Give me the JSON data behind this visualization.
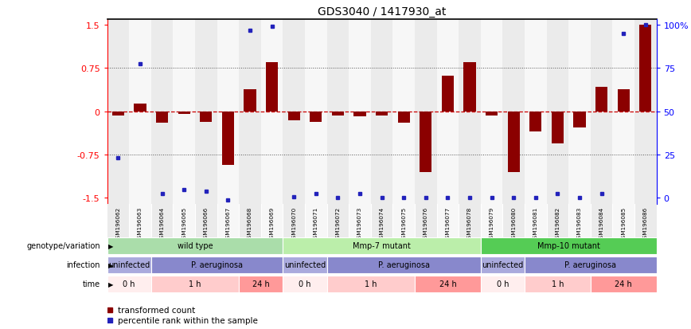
{
  "title": "GDS3040 / 1417930_at",
  "samples": [
    "GSM196062",
    "GSM196063",
    "GSM196064",
    "GSM196065",
    "GSM196066",
    "GSM196067",
    "GSM196068",
    "GSM196069",
    "GSM196070",
    "GSM196071",
    "GSM196072",
    "GSM196073",
    "GSM196074",
    "GSM196075",
    "GSM196076",
    "GSM196077",
    "GSM196078",
    "GSM196079",
    "GSM196080",
    "GSM196081",
    "GSM196082",
    "GSM196083",
    "GSM196084",
    "GSM196085",
    "GSM196086"
  ],
  "bar_values": [
    -0.07,
    0.13,
    -0.2,
    -0.05,
    -0.18,
    -0.93,
    0.39,
    0.85,
    -0.15,
    -0.18,
    -0.07,
    -0.08,
    -0.07,
    -0.2,
    -1.05,
    0.62,
    0.85,
    -0.07,
    -1.05,
    -0.35,
    -0.55,
    -0.28,
    0.42,
    0.38,
    1.5
  ],
  "dot_values": [
    -0.8,
    0.82,
    -1.42,
    -1.35,
    -1.38,
    -1.53,
    1.4,
    1.47,
    -1.48,
    -1.42,
    -1.5,
    -1.42,
    -1.5,
    -1.5,
    -1.5,
    -1.5,
    -1.5,
    -1.5,
    -1.5,
    -1.5,
    -1.42,
    -1.5,
    -1.42,
    1.35,
    1.5
  ],
  "ylim": [
    -1.6,
    1.6
  ],
  "yticks": [
    -1.5,
    -0.75,
    0.0,
    0.75,
    1.5
  ],
  "right_yticks": [
    0,
    25,
    50,
    75,
    100
  ],
  "right_ylabels": [
    "0",
    "25",
    "50",
    "75",
    "100%"
  ],
  "bar_color": "#8B0000",
  "dot_color": "#2222BB",
  "hline_color": "#cc0000",
  "dotted_color": "#555555",
  "groups": {
    "genotype": [
      {
        "label": "wild type",
        "start": 0,
        "end": 8,
        "color": "#aaddaa"
      },
      {
        "label": "Mmp-7 mutant",
        "start": 8,
        "end": 17,
        "color": "#bbeeaa"
      },
      {
        "label": "Mmp-10 mutant",
        "start": 17,
        "end": 25,
        "color": "#55cc55"
      }
    ],
    "infection": [
      {
        "label": "uninfected",
        "start": 0,
        "end": 2,
        "color": "#aaaadd"
      },
      {
        "label": "P. aeruginosa",
        "start": 2,
        "end": 8,
        "color": "#8888cc"
      },
      {
        "label": "uninfected",
        "start": 8,
        "end": 10,
        "color": "#aaaadd"
      },
      {
        "label": "P. aeruginosa",
        "start": 10,
        "end": 17,
        "color": "#8888cc"
      },
      {
        "label": "uninfected",
        "start": 17,
        "end": 19,
        "color": "#aaaadd"
      },
      {
        "label": "P. aeruginosa",
        "start": 19,
        "end": 25,
        "color": "#8888cc"
      }
    ],
    "time": [
      {
        "label": "0 h",
        "start": 0,
        "end": 2,
        "color": "#ffeeee"
      },
      {
        "label": "1 h",
        "start": 2,
        "end": 6,
        "color": "#ffcccc"
      },
      {
        "label": "24 h",
        "start": 6,
        "end": 8,
        "color": "#ff9999"
      },
      {
        "label": "0 h",
        "start": 8,
        "end": 10,
        "color": "#ffeeee"
      },
      {
        "label": "1 h",
        "start": 10,
        "end": 14,
        "color": "#ffcccc"
      },
      {
        "label": "24 h",
        "start": 14,
        "end": 17,
        "color": "#ff9999"
      },
      {
        "label": "0 h",
        "start": 17,
        "end": 19,
        "color": "#ffeeee"
      },
      {
        "label": "1 h",
        "start": 19,
        "end": 22,
        "color": "#ffcccc"
      },
      {
        "label": "24 h",
        "start": 22,
        "end": 25,
        "color": "#ff9999"
      }
    ]
  },
  "row_labels": [
    "genotype/variation",
    "infection",
    "time"
  ],
  "legend": [
    {
      "label": "transformed count",
      "color": "#8B0000"
    },
    {
      "label": "percentile rank within the sample",
      "color": "#2222BB"
    }
  ]
}
